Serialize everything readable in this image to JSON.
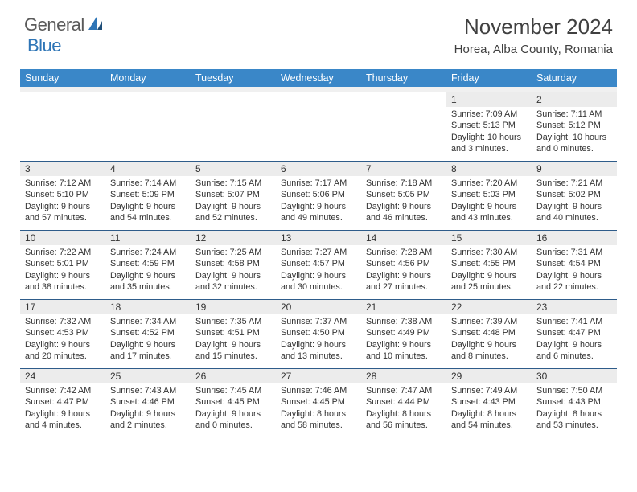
{
  "logo": {
    "general": "General",
    "blue": "Blue"
  },
  "title": "November 2024",
  "location": "Horea, Alba County, Romania",
  "colors": {
    "header_bg": "#3a87c8",
    "header_text": "#ffffff",
    "day_num_bg": "#ececec",
    "border": "#2e5c8a",
    "text": "#333333",
    "logo_gray": "#5a5a5a",
    "logo_blue": "#2e75b6"
  },
  "weekdays": [
    "Sunday",
    "Monday",
    "Tuesday",
    "Wednesday",
    "Thursday",
    "Friday",
    "Saturday"
  ],
  "weeks": [
    [
      {
        "n": "",
        "sr": "",
        "ss": "",
        "dl1": "",
        "dl2": ""
      },
      {
        "n": "",
        "sr": "",
        "ss": "",
        "dl1": "",
        "dl2": ""
      },
      {
        "n": "",
        "sr": "",
        "ss": "",
        "dl1": "",
        "dl2": ""
      },
      {
        "n": "",
        "sr": "",
        "ss": "",
        "dl1": "",
        "dl2": ""
      },
      {
        "n": "",
        "sr": "",
        "ss": "",
        "dl1": "",
        "dl2": ""
      },
      {
        "n": "1",
        "sr": "Sunrise: 7:09 AM",
        "ss": "Sunset: 5:13 PM",
        "dl1": "Daylight: 10 hours",
        "dl2": "and 3 minutes."
      },
      {
        "n": "2",
        "sr": "Sunrise: 7:11 AM",
        "ss": "Sunset: 5:12 PM",
        "dl1": "Daylight: 10 hours",
        "dl2": "and 0 minutes."
      }
    ],
    [
      {
        "n": "3",
        "sr": "Sunrise: 7:12 AM",
        "ss": "Sunset: 5:10 PM",
        "dl1": "Daylight: 9 hours",
        "dl2": "and 57 minutes."
      },
      {
        "n": "4",
        "sr": "Sunrise: 7:14 AM",
        "ss": "Sunset: 5:09 PM",
        "dl1": "Daylight: 9 hours",
        "dl2": "and 54 minutes."
      },
      {
        "n": "5",
        "sr": "Sunrise: 7:15 AM",
        "ss": "Sunset: 5:07 PM",
        "dl1": "Daylight: 9 hours",
        "dl2": "and 52 minutes."
      },
      {
        "n": "6",
        "sr": "Sunrise: 7:17 AM",
        "ss": "Sunset: 5:06 PM",
        "dl1": "Daylight: 9 hours",
        "dl2": "and 49 minutes."
      },
      {
        "n": "7",
        "sr": "Sunrise: 7:18 AM",
        "ss": "Sunset: 5:05 PM",
        "dl1": "Daylight: 9 hours",
        "dl2": "and 46 minutes."
      },
      {
        "n": "8",
        "sr": "Sunrise: 7:20 AM",
        "ss": "Sunset: 5:03 PM",
        "dl1": "Daylight: 9 hours",
        "dl2": "and 43 minutes."
      },
      {
        "n": "9",
        "sr": "Sunrise: 7:21 AM",
        "ss": "Sunset: 5:02 PM",
        "dl1": "Daylight: 9 hours",
        "dl2": "and 40 minutes."
      }
    ],
    [
      {
        "n": "10",
        "sr": "Sunrise: 7:22 AM",
        "ss": "Sunset: 5:01 PM",
        "dl1": "Daylight: 9 hours",
        "dl2": "and 38 minutes."
      },
      {
        "n": "11",
        "sr": "Sunrise: 7:24 AM",
        "ss": "Sunset: 4:59 PM",
        "dl1": "Daylight: 9 hours",
        "dl2": "and 35 minutes."
      },
      {
        "n": "12",
        "sr": "Sunrise: 7:25 AM",
        "ss": "Sunset: 4:58 PM",
        "dl1": "Daylight: 9 hours",
        "dl2": "and 32 minutes."
      },
      {
        "n": "13",
        "sr": "Sunrise: 7:27 AM",
        "ss": "Sunset: 4:57 PM",
        "dl1": "Daylight: 9 hours",
        "dl2": "and 30 minutes."
      },
      {
        "n": "14",
        "sr": "Sunrise: 7:28 AM",
        "ss": "Sunset: 4:56 PM",
        "dl1": "Daylight: 9 hours",
        "dl2": "and 27 minutes."
      },
      {
        "n": "15",
        "sr": "Sunrise: 7:30 AM",
        "ss": "Sunset: 4:55 PM",
        "dl1": "Daylight: 9 hours",
        "dl2": "and 25 minutes."
      },
      {
        "n": "16",
        "sr": "Sunrise: 7:31 AM",
        "ss": "Sunset: 4:54 PM",
        "dl1": "Daylight: 9 hours",
        "dl2": "and 22 minutes."
      }
    ],
    [
      {
        "n": "17",
        "sr": "Sunrise: 7:32 AM",
        "ss": "Sunset: 4:53 PM",
        "dl1": "Daylight: 9 hours",
        "dl2": "and 20 minutes."
      },
      {
        "n": "18",
        "sr": "Sunrise: 7:34 AM",
        "ss": "Sunset: 4:52 PM",
        "dl1": "Daylight: 9 hours",
        "dl2": "and 17 minutes."
      },
      {
        "n": "19",
        "sr": "Sunrise: 7:35 AM",
        "ss": "Sunset: 4:51 PM",
        "dl1": "Daylight: 9 hours",
        "dl2": "and 15 minutes."
      },
      {
        "n": "20",
        "sr": "Sunrise: 7:37 AM",
        "ss": "Sunset: 4:50 PM",
        "dl1": "Daylight: 9 hours",
        "dl2": "and 13 minutes."
      },
      {
        "n": "21",
        "sr": "Sunrise: 7:38 AM",
        "ss": "Sunset: 4:49 PM",
        "dl1": "Daylight: 9 hours",
        "dl2": "and 10 minutes."
      },
      {
        "n": "22",
        "sr": "Sunrise: 7:39 AM",
        "ss": "Sunset: 4:48 PM",
        "dl1": "Daylight: 9 hours",
        "dl2": "and 8 minutes."
      },
      {
        "n": "23",
        "sr": "Sunrise: 7:41 AM",
        "ss": "Sunset: 4:47 PM",
        "dl1": "Daylight: 9 hours",
        "dl2": "and 6 minutes."
      }
    ],
    [
      {
        "n": "24",
        "sr": "Sunrise: 7:42 AM",
        "ss": "Sunset: 4:47 PM",
        "dl1": "Daylight: 9 hours",
        "dl2": "and 4 minutes."
      },
      {
        "n": "25",
        "sr": "Sunrise: 7:43 AM",
        "ss": "Sunset: 4:46 PM",
        "dl1": "Daylight: 9 hours",
        "dl2": "and 2 minutes."
      },
      {
        "n": "26",
        "sr": "Sunrise: 7:45 AM",
        "ss": "Sunset: 4:45 PM",
        "dl1": "Daylight: 9 hours",
        "dl2": "and 0 minutes."
      },
      {
        "n": "27",
        "sr": "Sunrise: 7:46 AM",
        "ss": "Sunset: 4:45 PM",
        "dl1": "Daylight: 8 hours",
        "dl2": "and 58 minutes."
      },
      {
        "n": "28",
        "sr": "Sunrise: 7:47 AM",
        "ss": "Sunset: 4:44 PM",
        "dl1": "Daylight: 8 hours",
        "dl2": "and 56 minutes."
      },
      {
        "n": "29",
        "sr": "Sunrise: 7:49 AM",
        "ss": "Sunset: 4:43 PM",
        "dl1": "Daylight: 8 hours",
        "dl2": "and 54 minutes."
      },
      {
        "n": "30",
        "sr": "Sunrise: 7:50 AM",
        "ss": "Sunset: 4:43 PM",
        "dl1": "Daylight: 8 hours",
        "dl2": "and 53 minutes."
      }
    ]
  ]
}
